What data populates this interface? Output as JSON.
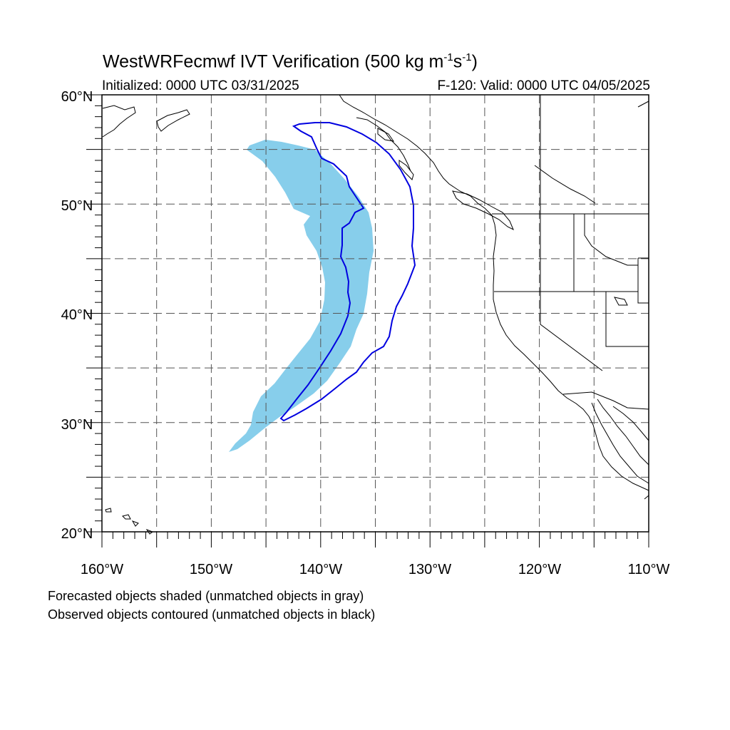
{
  "title": {
    "prefix": "WestWRFecmwf IVT Verification (500 kg m",
    "sup1": "-1",
    "mid": "s",
    "sup2": "-1",
    "suffix": ")"
  },
  "subtitle_left": "Initialized: 0000 UTC 03/31/2025",
  "subtitle_right": "F-120: Valid: 0000 UTC 04/05/2025",
  "lat_labels": [
    "60°N",
    "50°N",
    "40°N",
    "30°N",
    "20°N"
  ],
  "lon_labels": [
    "160°W",
    "150°W",
    "140°W",
    "130°W",
    "120°W",
    "110°W"
  ],
  "notes": {
    "forecast": "Forecasted objects shaded (unmatched objects in gray)",
    "observed": "Observed objects contoured (unmatched objects in black)"
  },
  "colors": {
    "forecast_fill": "#87CEEB",
    "observed_contour": "#0000E0",
    "coastline": "#000000",
    "grid": "#555555"
  },
  "map_extent": {
    "lon_min": -160,
    "lon_max": -110,
    "lat_min": 20,
    "lat_max": 60
  }
}
